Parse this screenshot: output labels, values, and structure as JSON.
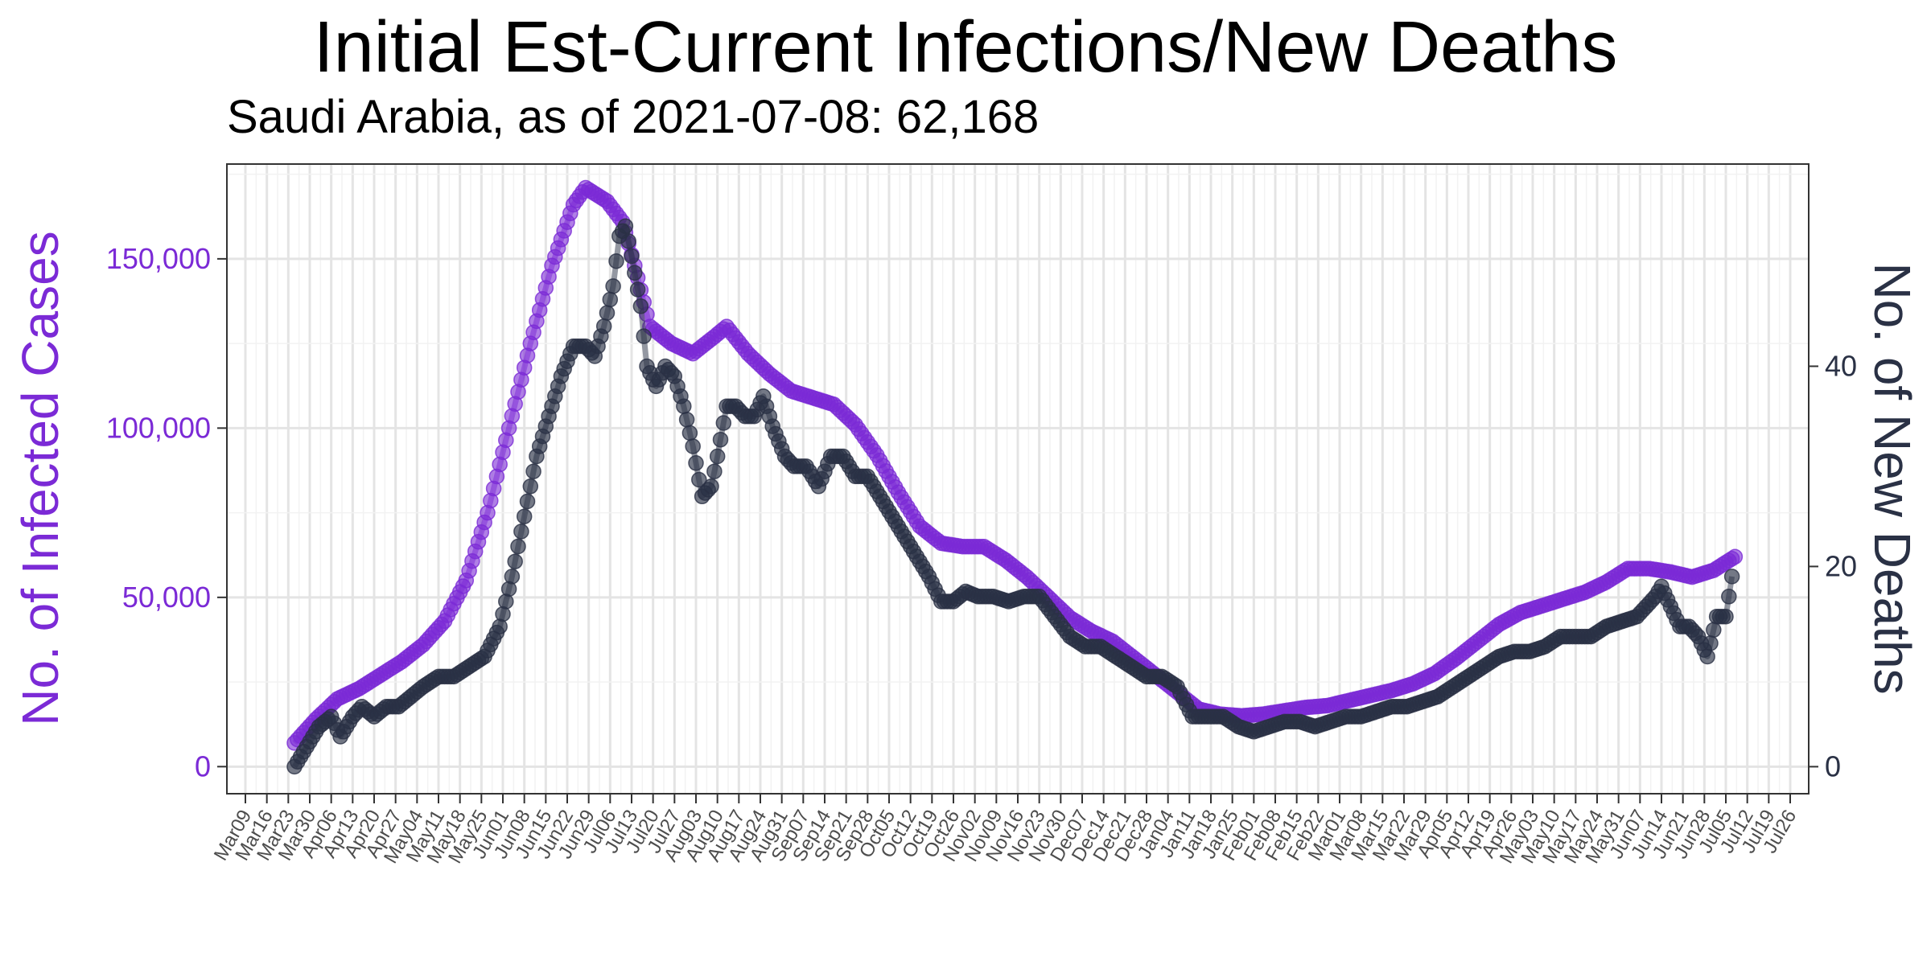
{
  "chart_data": {
    "type": "line",
    "title": "Initial Est-Current Infections/New Deaths",
    "subtitle": "Saudi Arabia, as of 2021-07-08:  62,168",
    "ylabel_left": "No. of Infected Cases",
    "ylabel_right": "No. of New Deaths",
    "ylim_left": [
      -8000,
      178000
    ],
    "ylim_right": [
      -2.7,
      60.2
    ],
    "yticks_left": [
      {
        "value": 0,
        "label": "0"
      },
      {
        "value": 50000,
        "label": "50,000"
      },
      {
        "value": 100000,
        "label": "100,000"
      },
      {
        "value": 150000,
        "label": "150,000"
      }
    ],
    "yticks_right": [
      {
        "value": 0,
        "label": "0"
      },
      {
        "value": 20,
        "label": "20"
      },
      {
        "value": 40,
        "label": "40"
      }
    ],
    "x_start_date": "2020-03-09",
    "x_end_date": "2021-07-26",
    "x_tick_labels": [
      "Mar09",
      "Mar16",
      "Mar23",
      "Mar30",
      "Apr06",
      "Apr13",
      "Apr20",
      "Apr27",
      "May04",
      "May11",
      "May18",
      "May25",
      "Jun01",
      "Jun08",
      "Jun15",
      "Jun22",
      "Jun29",
      "Jul06",
      "Jul13",
      "Jul20",
      "Jul27",
      "Aug03",
      "Aug10",
      "Aug17",
      "Aug24",
      "Aug31",
      "Sep07",
      "Sep14",
      "Sep21",
      "Sep28",
      "Oct05",
      "Oct12",
      "Oct19",
      "Oct26",
      "Nov02",
      "Nov09",
      "Nov16",
      "Nov23",
      "Nov30",
      "Dec07",
      "Dec14",
      "Dec21",
      "Dec28",
      "Jan04",
      "Jan11",
      "Jan18",
      "Jan25",
      "Feb01",
      "Feb08",
      "Feb15",
      "Feb22",
      "Mar01",
      "Mar08",
      "Mar15",
      "Mar22",
      "Mar29",
      "Apr05",
      "Apr12",
      "Apr19",
      "Apr26",
      "May03",
      "May10",
      "May17",
      "May24",
      "May31",
      "Jun07",
      "Jun14",
      "Jun21",
      "Jun28",
      "Jul05",
      "Jul12",
      "Jul19",
      "Jul26"
    ],
    "grid": true,
    "series": [
      {
        "name": "No. of Infected Cases",
        "axis": "left",
        "color": "#7B2AD6",
        "points": [
          [
            "2020-03-25",
            7000
          ],
          [
            "2020-04-01",
            14000
          ],
          [
            "2020-04-08",
            20000
          ],
          [
            "2020-04-15",
            23000
          ],
          [
            "2020-04-22",
            27000
          ],
          [
            "2020-04-29",
            31000
          ],
          [
            "2020-05-06",
            36000
          ],
          [
            "2020-05-13",
            43000
          ],
          [
            "2020-05-20",
            55000
          ],
          [
            "2020-05-27",
            75000
          ],
          [
            "2020-06-03",
            100000
          ],
          [
            "2020-06-10",
            125000
          ],
          [
            "2020-06-17",
            148000
          ],
          [
            "2020-06-24",
            166000
          ],
          [
            "2020-06-28",
            171000
          ],
          [
            "2020-07-05",
            167000
          ],
          [
            "2020-07-10",
            161000
          ],
          [
            "2020-07-14",
            148000
          ],
          [
            "2020-07-19",
            130000
          ],
          [
            "2020-07-26",
            125000
          ],
          [
            "2020-08-02",
            122000
          ],
          [
            "2020-08-09",
            127000
          ],
          [
            "2020-08-13",
            130000
          ],
          [
            "2020-08-20",
            122000
          ],
          [
            "2020-08-27",
            116000
          ],
          [
            "2020-09-03",
            111000
          ],
          [
            "2020-09-10",
            109000
          ],
          [
            "2020-09-17",
            107000
          ],
          [
            "2020-09-24",
            101000
          ],
          [
            "2020-10-01",
            92000
          ],
          [
            "2020-10-08",
            81000
          ],
          [
            "2020-10-15",
            71000
          ],
          [
            "2020-10-22",
            66000
          ],
          [
            "2020-10-29",
            65000
          ],
          [
            "2020-11-05",
            65000
          ],
          [
            "2020-11-12",
            61000
          ],
          [
            "2020-11-19",
            56000
          ],
          [
            "2020-11-26",
            50000
          ],
          [
            "2020-12-03",
            44000
          ],
          [
            "2020-12-10",
            40000
          ],
          [
            "2020-12-17",
            37000
          ],
          [
            "2020-12-24",
            32000
          ],
          [
            "2020-12-31",
            27000
          ],
          [
            "2021-01-07",
            22000
          ],
          [
            "2021-01-14",
            17000
          ],
          [
            "2021-01-21",
            15500
          ],
          [
            "2021-01-28",
            15000
          ],
          [
            "2021-02-04",
            15500
          ],
          [
            "2021-02-11",
            16500
          ],
          [
            "2021-02-18",
            17500
          ],
          [
            "2021-02-25",
            18000
          ],
          [
            "2021-03-04",
            19500
          ],
          [
            "2021-03-11",
            21000
          ],
          [
            "2021-03-18",
            22500
          ],
          [
            "2021-03-25",
            24500
          ],
          [
            "2021-04-01",
            27500
          ],
          [
            "2021-04-08",
            32000
          ],
          [
            "2021-04-15",
            37000
          ],
          [
            "2021-04-22",
            42000
          ],
          [
            "2021-04-29",
            45500
          ],
          [
            "2021-05-06",
            47500
          ],
          [
            "2021-05-13",
            49500
          ],
          [
            "2021-05-20",
            51500
          ],
          [
            "2021-05-27",
            54500
          ],
          [
            "2021-06-03",
            58500
          ],
          [
            "2021-06-10",
            58500
          ],
          [
            "2021-06-17",
            57500
          ],
          [
            "2021-06-24",
            56000
          ],
          [
            "2021-07-01",
            58000
          ],
          [
            "2021-07-08",
            62000
          ]
        ]
      },
      {
        "name": "No. of New Deaths",
        "axis": "right",
        "color": "#2A3145",
        "points": [
          [
            "2020-03-25",
            0
          ],
          [
            "2020-03-29",
            2
          ],
          [
            "2020-04-02",
            4
          ],
          [
            "2020-04-06",
            5
          ],
          [
            "2020-04-09",
            3
          ],
          [
            "2020-04-13",
            5
          ],
          [
            "2020-04-16",
            6
          ],
          [
            "2020-04-20",
            5
          ],
          [
            "2020-04-24",
            6
          ],
          [
            "2020-04-28",
            6
          ],
          [
            "2020-05-02",
            7
          ],
          [
            "2020-05-06",
            8
          ],
          [
            "2020-05-11",
            9
          ],
          [
            "2020-05-16",
            9
          ],
          [
            "2020-05-21",
            10
          ],
          [
            "2020-05-26",
            11
          ],
          [
            "2020-05-31",
            14
          ],
          [
            "2020-06-04",
            19
          ],
          [
            "2020-06-08",
            25
          ],
          [
            "2020-06-12",
            31
          ],
          [
            "2020-06-16",
            35
          ],
          [
            "2020-06-20",
            39
          ],
          [
            "2020-06-24",
            42
          ],
          [
            "2020-06-28",
            42
          ],
          [
            "2020-07-01",
            41
          ],
          [
            "2020-07-04",
            44
          ],
          [
            "2020-07-07",
            48
          ],
          [
            "2020-07-09",
            53
          ],
          [
            "2020-07-11",
            54
          ],
          [
            "2020-07-13",
            51
          ],
          [
            "2020-07-16",
            46
          ],
          [
            "2020-07-18",
            40
          ],
          [
            "2020-07-21",
            38
          ],
          [
            "2020-07-24",
            40
          ],
          [
            "2020-07-27",
            39
          ],
          [
            "2020-07-30",
            36
          ],
          [
            "2020-08-02",
            32
          ],
          [
            "2020-08-05",
            27
          ],
          [
            "2020-08-08",
            28
          ],
          [
            "2020-08-10",
            31
          ],
          [
            "2020-08-13",
            36
          ],
          [
            "2020-08-16",
            36
          ],
          [
            "2020-08-19",
            35
          ],
          [
            "2020-08-22",
            35
          ],
          [
            "2020-08-25",
            37
          ],
          [
            "2020-08-28",
            34
          ],
          [
            "2020-09-01",
            31
          ],
          [
            "2020-09-04",
            30
          ],
          [
            "2020-09-08",
            30
          ],
          [
            "2020-09-12",
            28
          ],
          [
            "2020-09-16",
            31
          ],
          [
            "2020-09-20",
            31
          ],
          [
            "2020-09-24",
            29
          ],
          [
            "2020-09-28",
            29
          ],
          [
            "2020-10-02",
            27
          ],
          [
            "2020-10-06",
            25
          ],
          [
            "2020-10-10",
            23
          ],
          [
            "2020-10-14",
            21
          ],
          [
            "2020-10-18",
            19
          ],
          [
            "2020-10-22",
            16.5
          ],
          [
            "2020-10-26",
            16.5
          ],
          [
            "2020-10-30",
            17.5
          ],
          [
            "2020-11-03",
            17
          ],
          [
            "2020-11-08",
            17
          ],
          [
            "2020-11-13",
            16.5
          ],
          [
            "2020-11-18",
            17
          ],
          [
            "2020-11-23",
            17
          ],
          [
            "2020-11-28",
            15
          ],
          [
            "2020-12-03",
            13
          ],
          [
            "2020-12-08",
            12
          ],
          [
            "2020-12-13",
            12
          ],
          [
            "2020-12-18",
            11
          ],
          [
            "2020-12-23",
            10
          ],
          [
            "2020-12-28",
            9
          ],
          [
            "2021-01-02",
            9
          ],
          [
            "2021-01-07",
            8
          ],
          [
            "2021-01-12",
            5
          ],
          [
            "2021-01-17",
            5
          ],
          [
            "2021-01-22",
            5
          ],
          [
            "2021-01-27",
            4
          ],
          [
            "2021-02-01",
            3.5
          ],
          [
            "2021-02-06",
            4
          ],
          [
            "2021-02-11",
            4.5
          ],
          [
            "2021-02-16",
            4.5
          ],
          [
            "2021-02-21",
            4
          ],
          [
            "2021-02-26",
            4.5
          ],
          [
            "2021-03-03",
            5
          ],
          [
            "2021-03-08",
            5
          ],
          [
            "2021-03-13",
            5.5
          ],
          [
            "2021-03-18",
            6
          ],
          [
            "2021-03-23",
            6
          ],
          [
            "2021-03-28",
            6.5
          ],
          [
            "2021-04-02",
            7
          ],
          [
            "2021-04-07",
            8
          ],
          [
            "2021-04-12",
            9
          ],
          [
            "2021-04-17",
            10
          ],
          [
            "2021-04-22",
            11
          ],
          [
            "2021-04-27",
            11.5
          ],
          [
            "2021-05-02",
            11.5
          ],
          [
            "2021-05-07",
            12
          ],
          [
            "2021-05-12",
            13
          ],
          [
            "2021-05-17",
            13
          ],
          [
            "2021-05-22",
            13
          ],
          [
            "2021-05-27",
            14
          ],
          [
            "2021-06-01",
            14.5
          ],
          [
            "2021-06-06",
            15
          ],
          [
            "2021-06-09",
            16
          ],
          [
            "2021-06-12",
            17
          ],
          [
            "2021-06-14",
            18
          ],
          [
            "2021-06-17",
            16
          ],
          [
            "2021-06-20",
            14
          ],
          [
            "2021-06-23",
            14
          ],
          [
            "2021-06-26",
            13
          ],
          [
            "2021-06-29",
            11
          ],
          [
            "2021-07-02",
            15
          ],
          [
            "2021-07-05",
            15
          ],
          [
            "2021-07-07",
            19
          ]
        ]
      }
    ]
  }
}
